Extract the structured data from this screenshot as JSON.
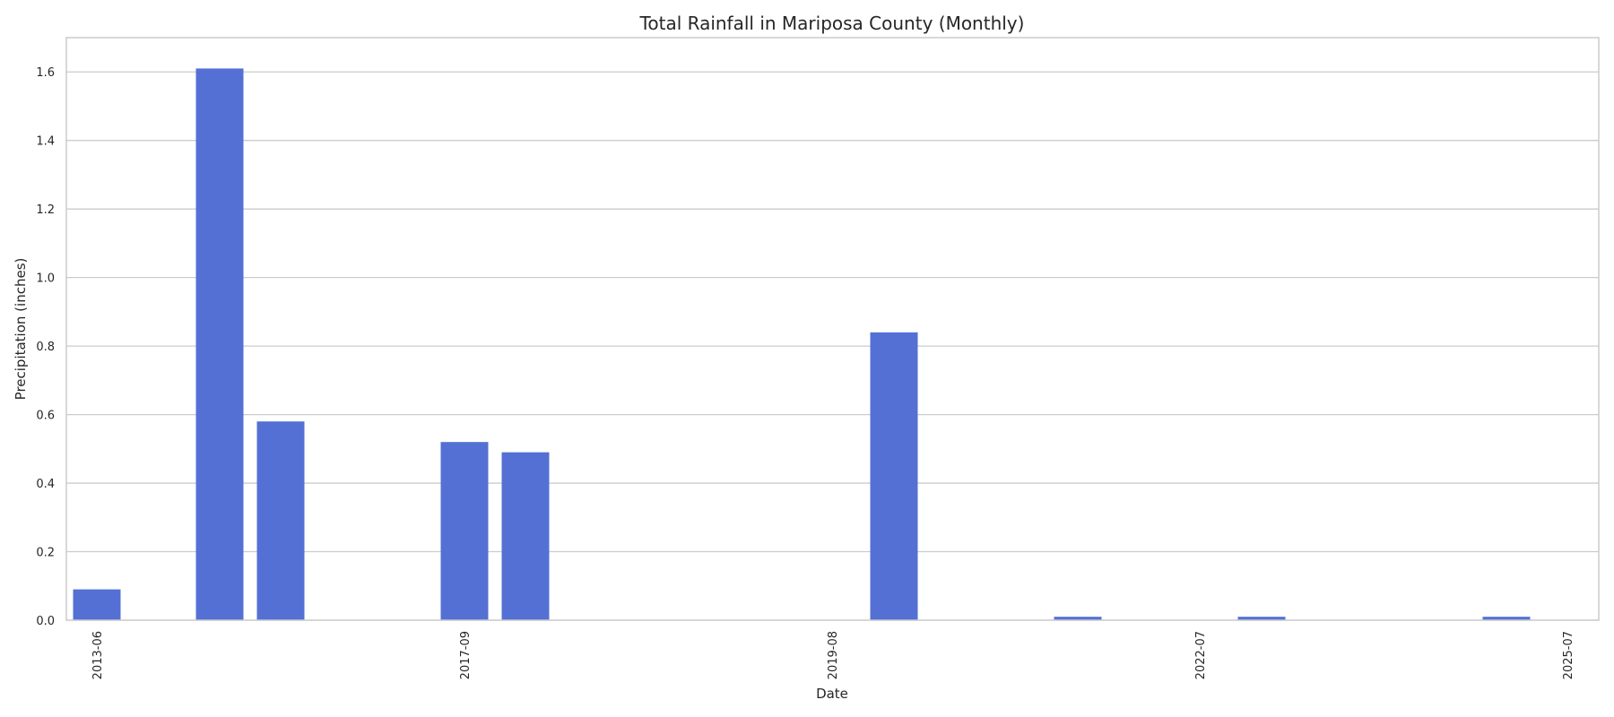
{
  "chart_data": {
    "type": "bar",
    "title": "Total Rainfall in Mariposa County (Monthly)",
    "xlabel": "Date",
    "ylabel": "Precipitation (inches)",
    "ylim": [
      0,
      1.7
    ],
    "yticks": [
      "0.0",
      "0.2",
      "0.4",
      "0.6",
      "0.8",
      "1.0",
      "1.2",
      "1.4",
      "1.6"
    ],
    "xtick_labels": [
      "2013-06",
      "2017-09",
      "2019-08",
      "2022-07",
      "2025-07"
    ],
    "grid": true,
    "bar_color": "#5470d4",
    "bars": [
      {
        "value": 0.09
      },
      {
        "value": 1.61
      },
      {
        "value": 0.58
      },
      {
        "value": 0.52
      },
      {
        "value": 0.49
      },
      {
        "value": 0.84
      },
      {
        "value": 0.01
      },
      {
        "value": 0.01
      },
      {
        "value": 0.01
      }
    ]
  }
}
